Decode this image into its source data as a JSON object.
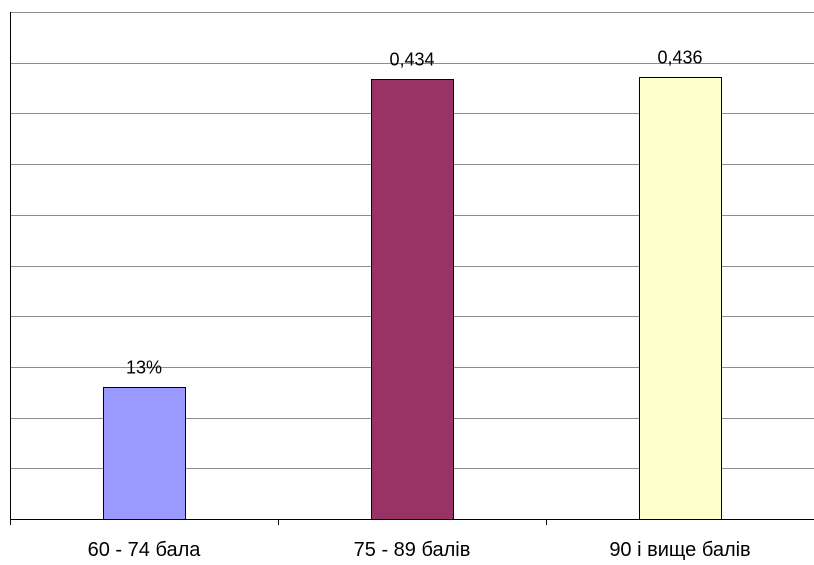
{
  "chart_data": {
    "type": "bar",
    "title": "",
    "xlabel": "",
    "ylabel": "",
    "categories": [
      "60 - 74 бала",
      "75 - 89 балів",
      "90 і вище балів"
    ],
    "values": [
      0.13,
      0.434,
      0.436
    ],
    "data_labels": [
      "13%",
      "0,434",
      "0,436"
    ],
    "colors": [
      "#9999ff",
      "#993366",
      "#ffffcc"
    ],
    "ylim": [
      0,
      0.5
    ],
    "y_grid_step": 0.05,
    "grid": true,
    "y_tick_labels_visible": false,
    "legend": "none"
  }
}
